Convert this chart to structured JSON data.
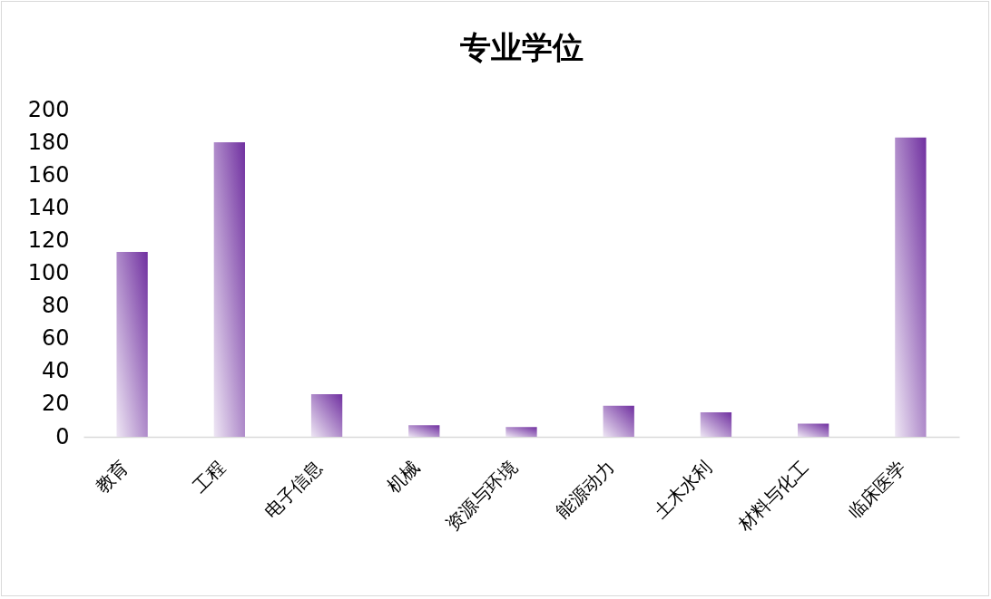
{
  "chart_data": {
    "type": "bar",
    "title": "专业学位",
    "categories": [
      "教育",
      "工程",
      "电子信息",
      "机械",
      "资源与环境",
      "能源动力",
      "土木水利",
      "材料与化工",
      "临床医学"
    ],
    "values": [
      113,
      180,
      26,
      7,
      6,
      19,
      15,
      8,
      183
    ],
    "color": "#7030a0",
    "ylim": [
      0,
      200
    ],
    "yticks": [
      0,
      20,
      40,
      60,
      80,
      100,
      120,
      140,
      160,
      180,
      200
    ]
  }
}
